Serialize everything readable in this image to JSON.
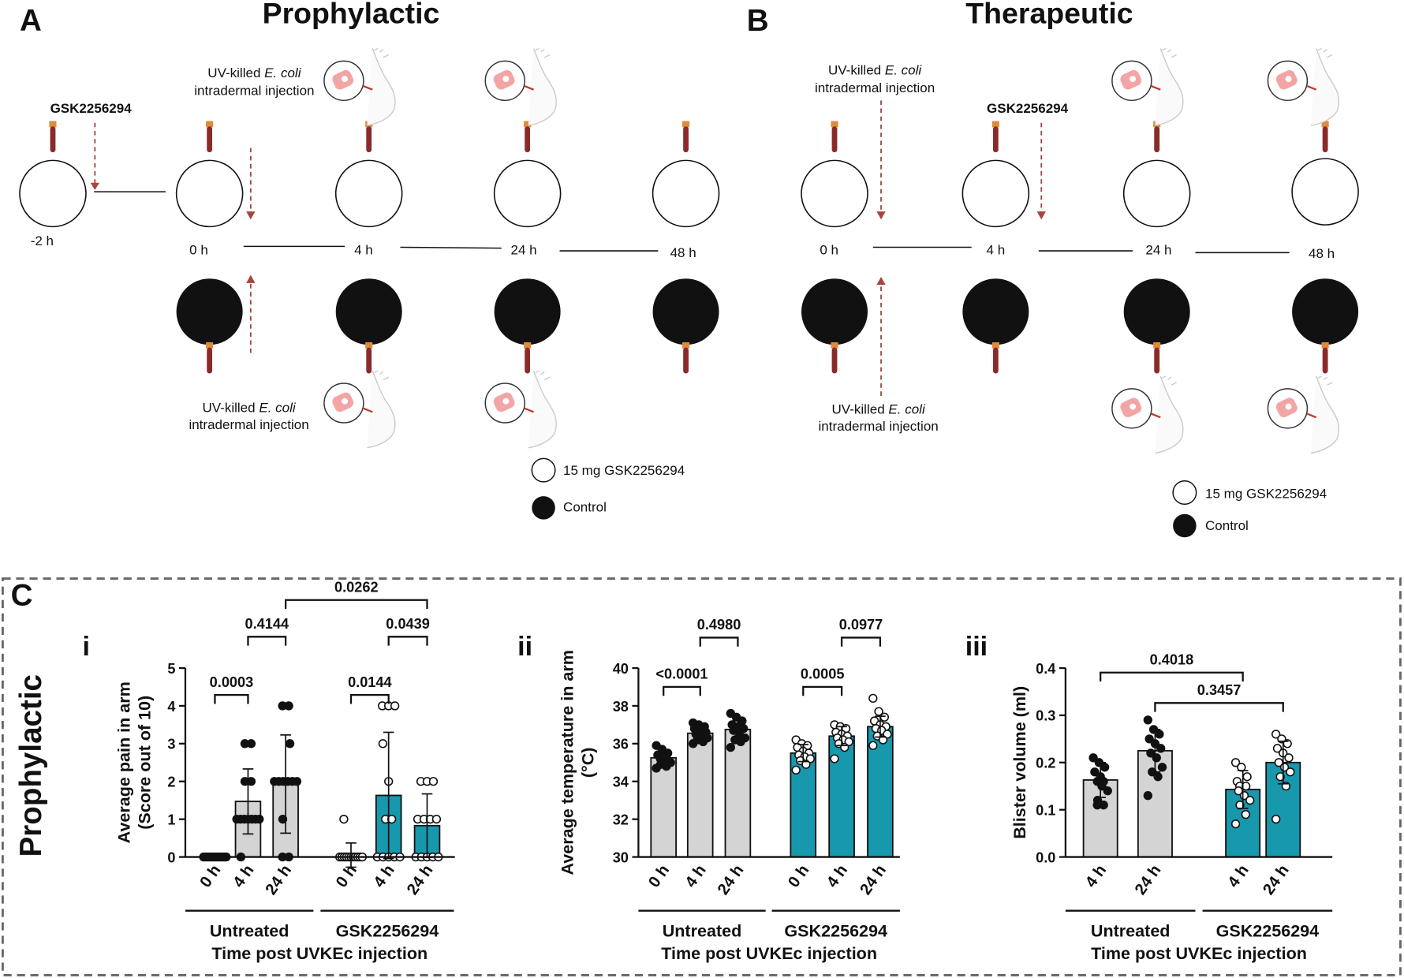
{
  "panel_a": {
    "letter": "A",
    "title": "Prophylactic",
    "drug": "GSK2256294",
    "injections": [
      {
        "pre": "UV-killed",
        "bug": "E. coli",
        "route": "intradermal injection"
      },
      {
        "pre": "UV-killed",
        "bug": "E. coli",
        "route": "intradermal injection"
      }
    ],
    "times": [
      "-2 h",
      "0 h",
      "4 h",
      "24 h",
      "48 h"
    ],
    "legend": [
      "15 mg GSK2256294",
      "Control"
    ]
  },
  "panel_b": {
    "letter": "B",
    "title": "Therapeutic",
    "drug": "GSK2256294",
    "injections": [
      {
        "pre": "UV-killed",
        "bug": "E. coli",
        "route": "intradermal injection"
      },
      {
        "pre": "UV-killed",
        "bug": "E. coli",
        "route": "intradermal injection"
      }
    ],
    "times": [
      "0 h",
      "4 h",
      "24 h",
      "48 h"
    ],
    "legend": [
      "15 mg GSK2256294",
      "Control"
    ]
  },
  "panel_c": {
    "letter": "C",
    "side_label": "Prophylactic"
  },
  "chart_data": [
    {
      "type": "bar",
      "panel": "i",
      "ylabel": [
        "Average pain in arm",
        "(Score out of 10)"
      ],
      "xlabel": "Time post UVKEc injection",
      "groups": [
        "Untreated",
        "GSK2256294"
      ],
      "group_colors": [
        "#d4d4d4",
        "#1798ad"
      ],
      "categories": [
        "0 h",
        "4 h",
        "24 h",
        "0 h",
        "4 h",
        "24 h"
      ],
      "values": [
        0,
        1.47,
        1.93,
        0.05,
        1.63,
        0.83
      ],
      "errors": [
        0,
        0.86,
        1.3,
        0.32,
        1.67,
        0.84
      ],
      "points": [
        [
          0,
          0,
          0,
          0,
          0,
          0,
          0,
          0,
          0,
          0,
          0,
          0
        ],
        [
          3,
          3,
          2,
          2,
          1,
          1,
          1,
          1,
          1,
          1,
          1,
          0
        ],
        [
          4,
          4,
          3,
          2,
          2,
          2,
          2,
          2,
          2,
          1,
          0,
          0
        ],
        [
          1,
          0,
          0,
          0,
          0,
          0,
          0,
          0,
          0,
          0,
          0,
          0
        ],
        [
          4,
          4,
          4,
          3,
          2,
          1,
          1,
          0,
          0,
          0,
          0,
          0
        ],
        [
          2,
          2,
          2,
          1,
          1,
          1,
          1,
          0,
          0,
          0,
          0,
          0
        ]
      ],
      "ylim": [
        0,
        5
      ],
      "yticks": [
        0,
        1,
        2,
        3,
        4,
        5
      ],
      "comparisons": [
        {
          "label": "0.0003",
          "from": 0,
          "to": 1
        },
        {
          "label": "0.4144",
          "from": 1,
          "to": 2
        },
        {
          "label": "0.0262",
          "from": 2,
          "to": 5
        },
        {
          "label": "0.0144",
          "from": 3,
          "to": 4
        },
        {
          "label": "0.0439",
          "from": 4,
          "to": 5
        }
      ]
    },
    {
      "type": "bar",
      "panel": "ii",
      "ylabel": [
        "Average temperature in arm",
        "(°C)"
      ],
      "xlabel": "Time post UVKEc injection",
      "groups": [
        "Untreated",
        "GSK2256294"
      ],
      "group_colors": [
        "#d4d4d4",
        "#1798ad"
      ],
      "categories": [
        "0 h",
        "4 h",
        "24 h",
        "0 h",
        "4 h",
        "24 h"
      ],
      "values": [
        35.25,
        36.55,
        36.75,
        35.5,
        36.4,
        36.9
      ],
      "errors": [
        0.35,
        0.35,
        0.5,
        0.45,
        0.5,
        0.55
      ],
      "points": [
        [
          35.9,
          35.7,
          35.5,
          35.4,
          35.3,
          35.2,
          35.2,
          35.1,
          35.0,
          34.9,
          34.8,
          34.7
        ],
        [
          37.1,
          37.0,
          36.9,
          36.8,
          36.7,
          36.6,
          36.5,
          36.4,
          36.3,
          36.2,
          36.1,
          36.0
        ],
        [
          37.6,
          37.4,
          37.2,
          37.0,
          36.9,
          36.8,
          36.7,
          36.5,
          36.3,
          36.2,
          36.1,
          35.8
        ],
        [
          36.2,
          36.0,
          35.9,
          35.8,
          35.6,
          35.5,
          35.4,
          35.3,
          35.2,
          35.1,
          34.9,
          34.6
        ],
        [
          37.0,
          36.9,
          36.8,
          36.6,
          36.5,
          36.4,
          36.3,
          36.2,
          36.1,
          36.0,
          35.8,
          35.2
        ],
        [
          38.4,
          37.7,
          37.4,
          37.2,
          37.0,
          36.9,
          36.8,
          36.7,
          36.5,
          36.4,
          36.2,
          35.9
        ]
      ],
      "ylim": [
        30,
        40
      ],
      "yticks": [
        30,
        32,
        34,
        36,
        38,
        40
      ],
      "comparisons": [
        {
          "label": "<0.0001",
          "from": 0,
          "to": 1
        },
        {
          "label": "0.4980",
          "from": 1,
          "to": 2
        },
        {
          "label": "0.0005",
          "from": 3,
          "to": 4
        },
        {
          "label": "0.0977",
          "from": 4,
          "to": 5
        }
      ]
    },
    {
      "type": "bar",
      "panel": "iii",
      "ylabel": [
        "Blister volume (ml)"
      ],
      "xlabel": "Time post UVKEc injection",
      "groups": [
        "Untreated",
        "GSK2256294"
      ],
      "group_colors": [
        "#d4d4d4",
        "#1798ad"
      ],
      "categories": [
        "4 h",
        "24 h",
        "4 h",
        "24 h"
      ],
      "values": [
        0.163,
        0.225,
        0.143,
        0.2
      ],
      "errors": [
        0.037,
        0.045,
        0.04,
        0.045
      ],
      "points": [
        [
          0.21,
          0.2,
          0.19,
          0.18,
          0.17,
          0.16,
          0.16,
          0.15,
          0.14,
          0.12,
          0.11,
          0.11
        ],
        [
          0.29,
          0.27,
          0.26,
          0.25,
          0.24,
          0.23,
          0.22,
          0.21,
          0.19,
          0.18,
          0.17,
          0.13
        ],
        [
          0.2,
          0.19,
          0.17,
          0.16,
          0.15,
          0.15,
          0.14,
          0.13,
          0.12,
          0.11,
          0.09,
          0.07
        ],
        [
          0.26,
          0.25,
          0.24,
          0.23,
          0.22,
          0.21,
          0.2,
          0.19,
          0.18,
          0.17,
          0.15,
          0.08
        ]
      ],
      "ylim": [
        0,
        0.4
      ],
      "yticks": [
        {
          "value": 0,
          "label": "0.0"
        },
        0.1,
        0.2,
        0.3,
        0.4
      ],
      "comparisons": [
        {
          "label": "0.4018",
          "from": 0,
          "to": 2
        },
        {
          "label": "0.3457",
          "from": 1,
          "to": 3
        }
      ]
    }
  ]
}
